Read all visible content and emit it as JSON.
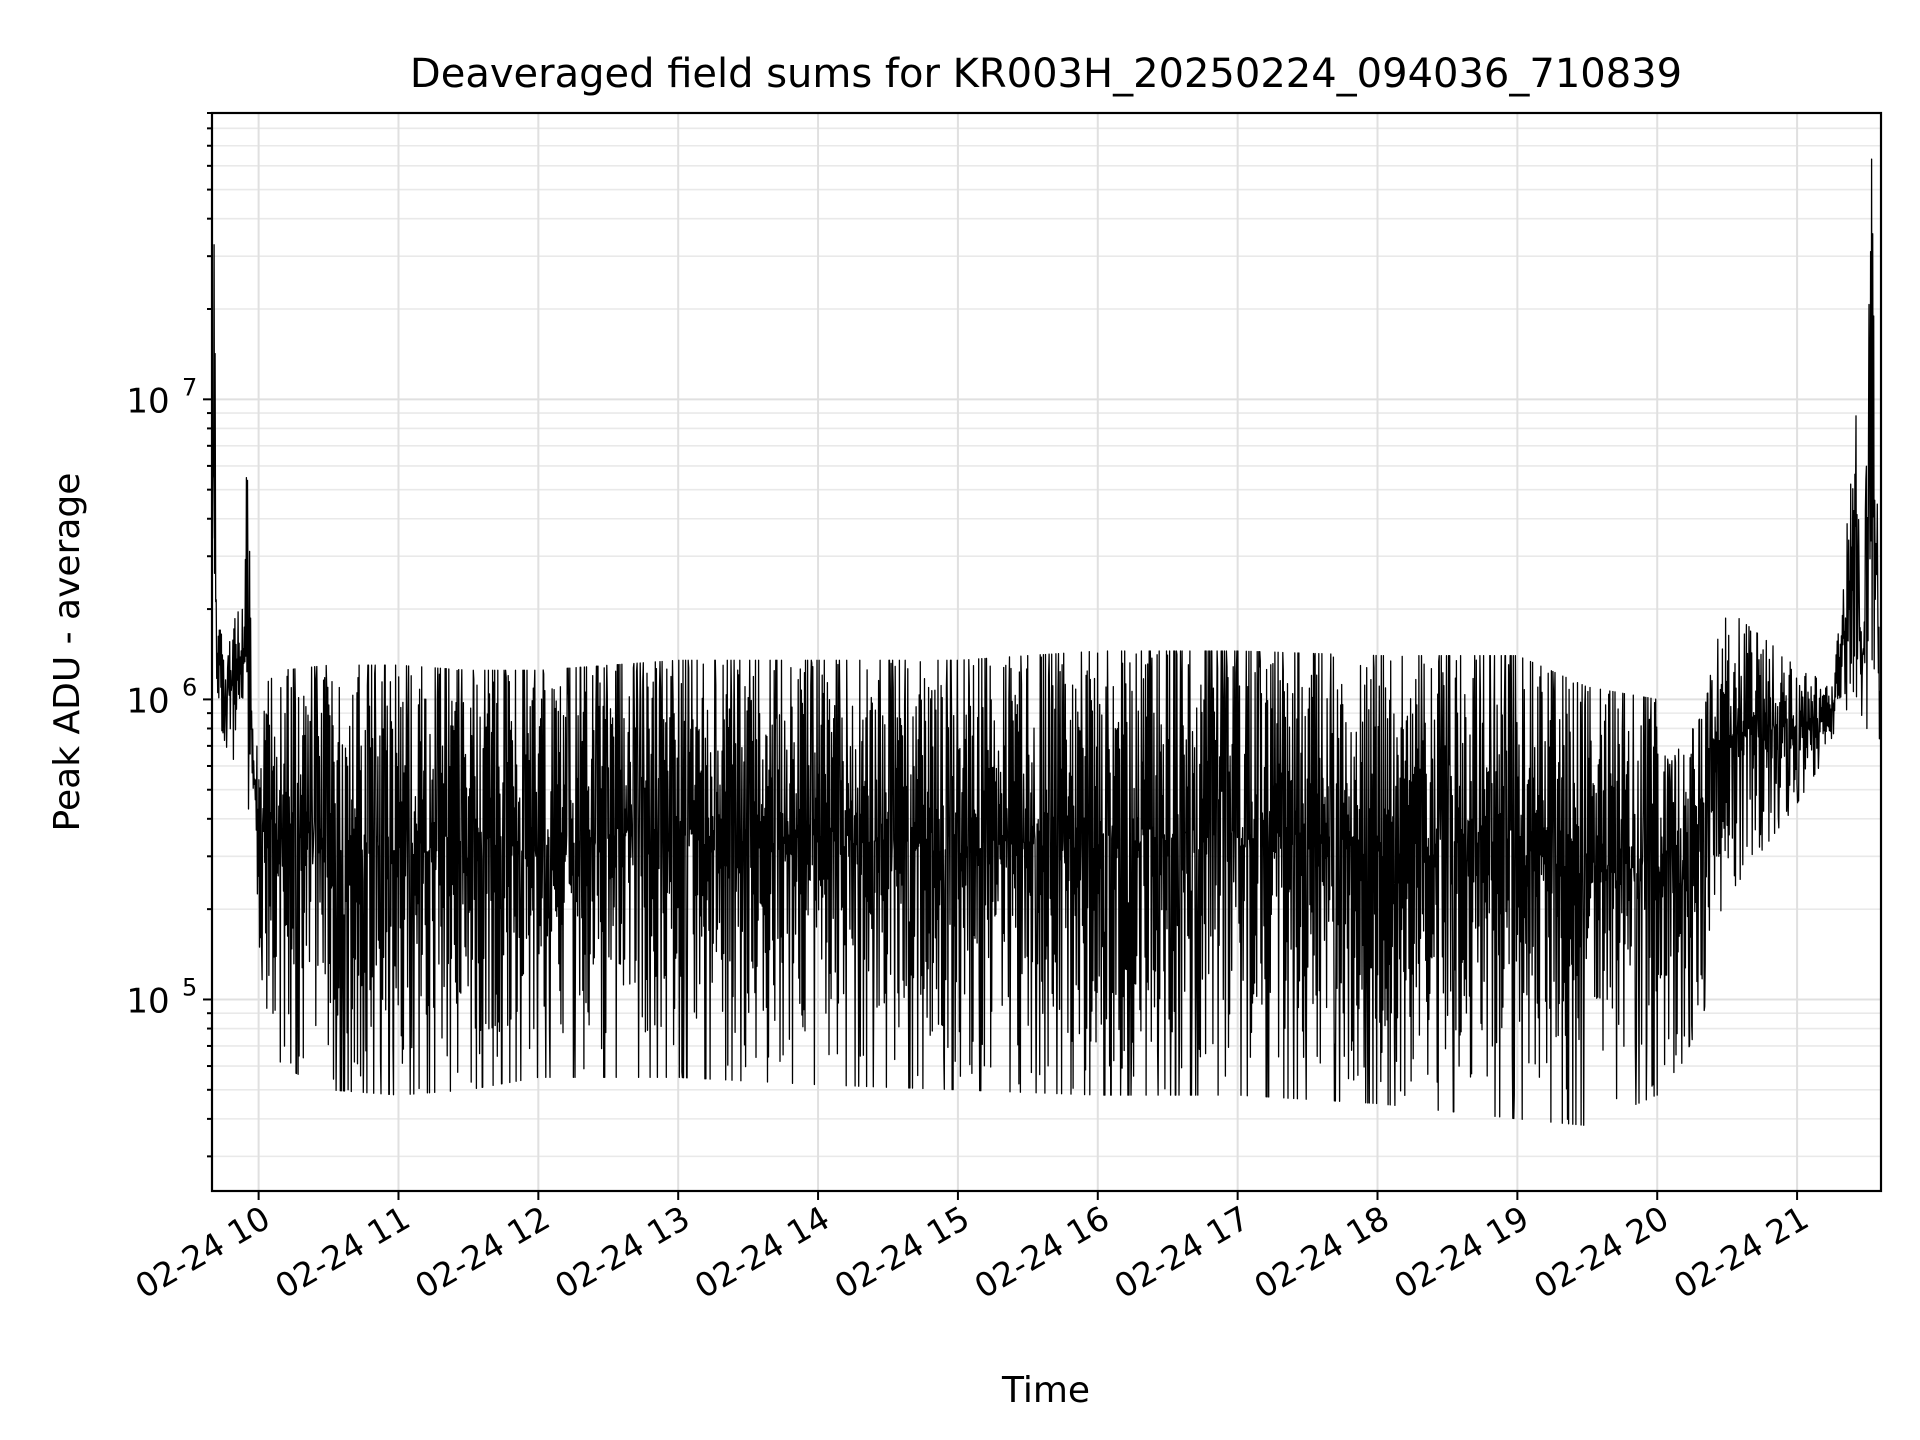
{
  "chart_data": {
    "type": "line",
    "title": "Deaveraged field sums for KR003H_20250224_094036_710839",
    "xlabel": "Time",
    "ylabel": "Peak ADU - average",
    "yscale": "log",
    "ylim": [
      23000,
      90000000
    ],
    "xlim": [
      "2025-02-24 09:40",
      "2025-02-24 21:36"
    ],
    "grid": true,
    "legend": "none",
    "line_color": "#000000",
    "grid_color": "#e0e0e0",
    "xticks": [
      {
        "t": "2025-02-24 10:00",
        "label": "02-24 10"
      },
      {
        "t": "2025-02-24 11:00",
        "label": "02-24 11"
      },
      {
        "t": "2025-02-24 12:00",
        "label": "02-24 12"
      },
      {
        "t": "2025-02-24 13:00",
        "label": "02-24 13"
      },
      {
        "t": "2025-02-24 14:00",
        "label": "02-24 14"
      },
      {
        "t": "2025-02-24 15:00",
        "label": "02-24 15"
      },
      {
        "t": "2025-02-24 16:00",
        "label": "02-24 16"
      },
      {
        "t": "2025-02-24 17:00",
        "label": "02-24 17"
      },
      {
        "t": "2025-02-24 18:00",
        "label": "02-24 18"
      },
      {
        "t": "2025-02-24 19:00",
        "label": "02-24 19"
      },
      {
        "t": "2025-02-24 20:00",
        "label": "02-24 20"
      },
      {
        "t": "2025-02-24 21:00",
        "label": "02-24 21"
      }
    ],
    "yticks": [
      {
        "value": 100000,
        "base": "10",
        "exp": "5"
      },
      {
        "value": 1000000,
        "base": "10",
        "exp": "6"
      },
      {
        "value": 10000000,
        "base": "10",
        "exp": "7"
      }
    ],
    "series": [
      {
        "values_summary": "dense signal sampled continuously; approximate envelope",
        "x": [
          "2025-02-24 09:40",
          "2025-02-24 09:41",
          "2025-02-24 09:42",
          "2025-02-24 09:44",
          "2025-02-24 09:46",
          "2025-02-24 09:50",
          "2025-02-24 09:54",
          "2025-02-24 09:55",
          "2025-02-24 09:57",
          "2025-02-24 10:00",
          "2025-02-24 10:05",
          "2025-02-24 10:10",
          "2025-02-24 10:30",
          "2025-02-24 11:00",
          "2025-02-24 11:30",
          "2025-02-24 12:00",
          "2025-02-24 13:00",
          "2025-02-24 14:00",
          "2025-02-24 15:00",
          "2025-02-24 16:00",
          "2025-02-24 17:00",
          "2025-02-24 18:00",
          "2025-02-24 19:00",
          "2025-02-24 19:30",
          "2025-02-24 20:00",
          "2025-02-24 20:05",
          "2025-02-24 20:10",
          "2025-02-24 20:20",
          "2025-02-24 20:25",
          "2025-02-24 20:30",
          "2025-02-24 21:00",
          "2025-02-24 21:15",
          "2025-02-24 21:20",
          "2025-02-24 21:25",
          "2025-02-24 21:28",
          "2025-02-24 21:32",
          "2025-02-24 21:36"
        ],
        "high": [
          4500000,
          60000000,
          1400000,
          2200000,
          1200000,
          2300000,
          1900000,
          12000000,
          1100000,
          700000,
          1300000,
          1250000,
          1300000,
          1300000,
          1250000,
          1250000,
          1350000,
          1350000,
          1350000,
          1450000,
          1450000,
          1400000,
          1400000,
          1100000,
          1000000,
          600000,
          700000,
          900000,
          1500000,
          2000000,
          1300000,
          1100000,
          2500000,
          11000000,
          1200000,
          65000000,
          800000
        ],
        "low": [
          900000,
          1300000,
          950000,
          800000,
          700000,
          600000,
          900000,
          500000,
          320000,
          140000,
          75000,
          60000,
          50000,
          48000,
          50000,
          55000,
          55000,
          52000,
          50000,
          48000,
          48000,
          45000,
          40000,
          38000,
          48000,
          55000,
          60000,
          90000,
          180000,
          220000,
          450000,
          700000,
          900000,
          1000000,
          800000,
          800000,
          650000
        ]
      }
    ]
  }
}
